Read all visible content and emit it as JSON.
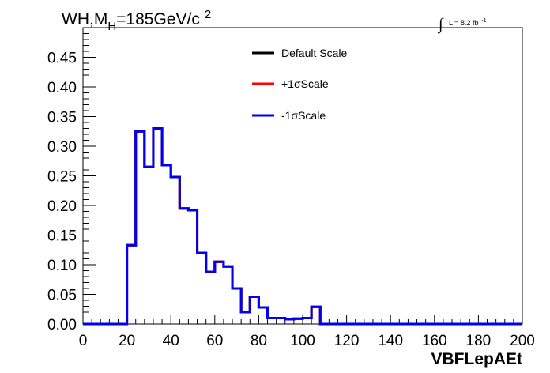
{
  "chart_data": {
    "type": "line",
    "title_main": "WH,M",
    "title_sub": "H",
    "title_rest": "=185GeV/c",
    "title_sup": "2",
    "lumi_label": "L = 8.2 fb",
    "lumi_sup": "-1",
    "lumi_integral": "∫",
    "xlabel": "VBFLepAEt",
    "ylabel": "",
    "xlim": [
      0,
      200
    ],
    "ylim": [
      0,
      0.5
    ],
    "xticks": [
      0,
      20,
      40,
      60,
      80,
      100,
      120,
      140,
      160,
      180,
      200
    ],
    "xtick_labels": [
      "0",
      "20",
      "40",
      "60",
      "80",
      "100",
      "120",
      "140",
      "160",
      "180",
      "200"
    ],
    "yticks": [
      0.0,
      0.05,
      0.1,
      0.15,
      0.2,
      0.25,
      0.3,
      0.35,
      0.4,
      0.45
    ],
    "ytick_labels": [
      "0.00",
      "0.05",
      "0.10",
      "0.15",
      "0.20",
      "0.25",
      "0.30",
      "0.35",
      "0.40",
      "0.45"
    ],
    "bin_edges": [
      0,
      4,
      8,
      12,
      16,
      20,
      24,
      28,
      32,
      36,
      40,
      44,
      48,
      52,
      56,
      60,
      64,
      68,
      72,
      76,
      80,
      84,
      88,
      92,
      96,
      100,
      104,
      108,
      112,
      116,
      120,
      124,
      128,
      132,
      136,
      140,
      144,
      148,
      152,
      156,
      160,
      164,
      168,
      172,
      176,
      180,
      184,
      188,
      192,
      196,
      200
    ],
    "legend_position": "top-center",
    "grid": false,
    "series": [
      {
        "name": "Default Scale",
        "color": "#000000",
        "values": [
          0,
          0,
          0,
          0,
          0,
          0.133,
          0.325,
          0.265,
          0.33,
          0.268,
          0.248,
          0.195,
          0.192,
          0.12,
          0.088,
          0.105,
          0.097,
          0.06,
          0.02,
          0.046,
          0.028,
          0.01,
          0.01,
          0.008,
          0.009,
          0.01,
          0.029,
          0,
          0,
          0,
          0,
          0,
          0,
          0,
          0,
          0,
          0,
          0,
          0,
          0,
          0,
          0,
          0,
          0,
          0,
          0,
          0,
          0,
          0,
          0
        ]
      },
      {
        "name": "+1σScale",
        "color": "#ff0000",
        "values": [
          0,
          0,
          0,
          0,
          0,
          0.133,
          0.325,
          0.265,
          0.33,
          0.268,
          0.248,
          0.195,
          0.192,
          0.12,
          0.088,
          0.105,
          0.097,
          0.06,
          0.02,
          0.046,
          0.028,
          0.01,
          0.01,
          0.008,
          0.009,
          0.01,
          0.029,
          0,
          0,
          0,
          0,
          0,
          0,
          0,
          0,
          0,
          0,
          0,
          0,
          0,
          0,
          0,
          0,
          0,
          0,
          0,
          0,
          0,
          0,
          0
        ]
      },
      {
        "name": "-1σScale",
        "color": "#0000ee",
        "values": [
          0,
          0,
          0,
          0,
          0,
          0.133,
          0.325,
          0.265,
          0.33,
          0.268,
          0.248,
          0.195,
          0.192,
          0.12,
          0.088,
          0.105,
          0.097,
          0.06,
          0.02,
          0.046,
          0.028,
          0.01,
          0.01,
          0.008,
          0.009,
          0.01,
          0.029,
          0,
          0,
          0,
          0,
          0,
          0,
          0,
          0,
          0,
          0,
          0,
          0,
          0,
          0,
          0,
          0,
          0,
          0,
          0,
          0,
          0,
          0,
          0
        ]
      }
    ]
  }
}
